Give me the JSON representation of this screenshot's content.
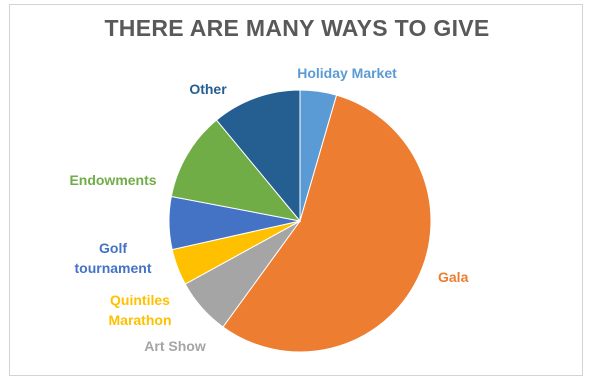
{
  "chart_data": {
    "type": "pie",
    "title": "THERE ARE MANY WAYS TO GIVE",
    "slices": [
      {
        "label": [
          "Holiday  Market"
        ],
        "value": 4.5,
        "color": "#5b9bd5"
      },
      {
        "label": [
          "Gala"
        ],
        "value": 55.5,
        "color": "#ed7d31"
      },
      {
        "label": [
          "Art Show"
        ],
        "value": 7.0,
        "color": "#a5a5a5"
      },
      {
        "label": [
          "Quintiles",
          "Marathon"
        ],
        "value": 4.5,
        "color": "#ffc000"
      },
      {
        "label": [
          "Golf",
          "tournament"
        ],
        "value": 6.5,
        "color": "#4472c4"
      },
      {
        "label": [
          "Endowments"
        ],
        "value": 11.0,
        "color": "#70ad47"
      },
      {
        "label": [
          "Other"
        ],
        "value": 11.0,
        "color": "#255e91"
      }
    ],
    "legend": "none",
    "start_angle_deg": 0
  }
}
